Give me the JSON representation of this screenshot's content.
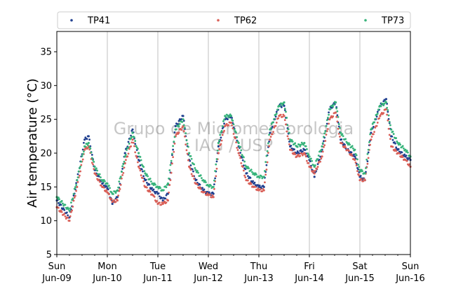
{
  "chart_data": {
    "type": "scatter",
    "ylabel": "Air temperature (°C)",
    "xlabel": "",
    "ylim": [
      5,
      38
    ],
    "xlim": [
      0,
      7
    ],
    "yticks": [
      5,
      10,
      15,
      20,
      25,
      30,
      35
    ],
    "xticks": [
      {
        "day": "Sun",
        "date": "Jun-09"
      },
      {
        "day": "Mon",
        "date": "Jun-10"
      },
      {
        "day": "Tue",
        "date": "Jun-11"
      },
      {
        "day": "Wed",
        "date": "Jun-12"
      },
      {
        "day": "Thu",
        "date": "Jun-13"
      },
      {
        "day": "Fri",
        "date": "Jun-14"
      },
      {
        "day": "Sat",
        "date": "Jun-15"
      },
      {
        "day": "Sun",
        "date": "Jun-16"
      }
    ],
    "grid": "vertical",
    "legend_position": "top",
    "watermark": [
      "Grupo de Micrometeorologia",
      "IAG / USP"
    ],
    "series": [
      {
        "name": "TP41",
        "color": "#1f3f8f",
        "x": [
          0,
          0.25,
          0.4,
          0.55,
          0.63,
          0.75,
          0.9,
          1.0,
          1.1,
          1.2,
          1.35,
          1.5,
          1.62,
          1.75,
          1.9,
          2.0,
          2.1,
          2.2,
          2.35,
          2.5,
          2.62,
          2.75,
          2.9,
          3.0,
          3.1,
          3.2,
          3.33,
          3.45,
          3.6,
          3.75,
          3.9,
          4.0,
          4.1,
          4.22,
          4.4,
          4.5,
          4.62,
          4.75,
          4.9,
          5.0,
          5.1,
          5.25,
          5.4,
          5.52,
          5.62,
          5.75,
          5.9,
          6.0,
          6.1,
          6.22,
          6.4,
          6.52,
          6.62,
          6.75,
          6.9,
          7.0
        ],
        "y": [
          13.0,
          10.5,
          16.0,
          22.0,
          22.5,
          17.5,
          15.5,
          14.8,
          12.5,
          13.5,
          20.0,
          23.5,
          19.0,
          16.0,
          14.5,
          14.0,
          13.0,
          14.0,
          24.0,
          25.5,
          19.0,
          16.0,
          14.5,
          14.0,
          14.0,
          21.0,
          25.0,
          25.5,
          21.0,
          17.0,
          15.5,
          15.0,
          15.0,
          23.0,
          27.0,
          27.0,
          21.0,
          20.0,
          20.5,
          19.0,
          16.5,
          20.5,
          26.5,
          27.5,
          22.0,
          20.5,
          19.5,
          16.5,
          16.0,
          23.0,
          27.0,
          28.0,
          22.5,
          20.5,
          19.5,
          19.0
        ]
      },
      {
        "name": "TP62",
        "color": "#d95f57",
        "x": [
          0,
          0.25,
          0.4,
          0.55,
          0.63,
          0.75,
          0.9,
          1.0,
          1.1,
          1.2,
          1.35,
          1.5,
          1.62,
          1.75,
          1.9,
          2.0,
          2.1,
          2.2,
          2.35,
          2.5,
          2.62,
          2.75,
          2.9,
          3.0,
          3.1,
          3.2,
          3.33,
          3.45,
          3.6,
          3.75,
          3.9,
          4.0,
          4.1,
          4.22,
          4.4,
          4.5,
          4.62,
          4.75,
          4.9,
          5.0,
          5.1,
          5.25,
          5.4,
          5.52,
          5.62,
          5.75,
          5.9,
          6.0,
          6.1,
          6.22,
          6.4,
          6.52,
          6.62,
          6.75,
          6.9,
          7.0
        ],
        "y": [
          12.0,
          10.0,
          15.0,
          20.5,
          21.0,
          17.0,
          15.0,
          14.2,
          12.8,
          13.0,
          18.5,
          22.0,
          18.0,
          15.0,
          13.8,
          12.5,
          12.5,
          13.0,
          22.5,
          24.0,
          18.0,
          15.5,
          14.2,
          13.8,
          13.5,
          20.0,
          24.0,
          24.5,
          20.0,
          16.0,
          15.0,
          14.5,
          14.5,
          22.0,
          25.5,
          25.5,
          20.5,
          19.5,
          20.0,
          18.0,
          17.0,
          19.5,
          25.0,
          26.0,
          21.5,
          20.5,
          19.0,
          16.0,
          16.0,
          22.0,
          25.5,
          26.5,
          21.0,
          20.0,
          19.0,
          18.0
        ]
      },
      {
        "name": "TP73",
        "color": "#36b37a",
        "x": [
          0,
          0.25,
          0.4,
          0.55,
          0.63,
          0.75,
          0.9,
          1.0,
          1.1,
          1.2,
          1.35,
          1.5,
          1.62,
          1.75,
          1.9,
          2.0,
          2.1,
          2.2,
          2.35,
          2.5,
          2.62,
          2.75,
          2.9,
          3.0,
          3.1,
          3.2,
          3.33,
          3.45,
          3.6,
          3.75,
          3.9,
          4.0,
          4.1,
          4.22,
          4.4,
          4.5,
          4.62,
          4.75,
          4.9,
          5.0,
          5.1,
          5.25,
          5.4,
          5.52,
          5.62,
          5.75,
          5.9,
          6.0,
          6.1,
          6.22,
          6.4,
          6.52,
          6.62,
          6.75,
          6.9,
          7.0
        ],
        "y": [
          13.5,
          11.5,
          16.0,
          21.0,
          21.5,
          18.0,
          16.0,
          15.5,
          14.0,
          14.5,
          19.5,
          23.0,
          20.0,
          17.0,
          15.5,
          15.0,
          14.5,
          15.5,
          23.5,
          25.0,
          20.0,
          17.5,
          16.0,
          15.2,
          15.0,
          21.5,
          25.5,
          25.5,
          21.5,
          18.0,
          17.0,
          16.5,
          16.5,
          23.5,
          27.0,
          27.5,
          22.0,
          21.0,
          21.5,
          19.5,
          18.0,
          21.0,
          26.5,
          27.5,
          23.0,
          21.5,
          20.5,
          17.5,
          17.0,
          23.5,
          27.0,
          27.5,
          23.5,
          21.5,
          20.5,
          19.5
        ]
      }
    ]
  }
}
